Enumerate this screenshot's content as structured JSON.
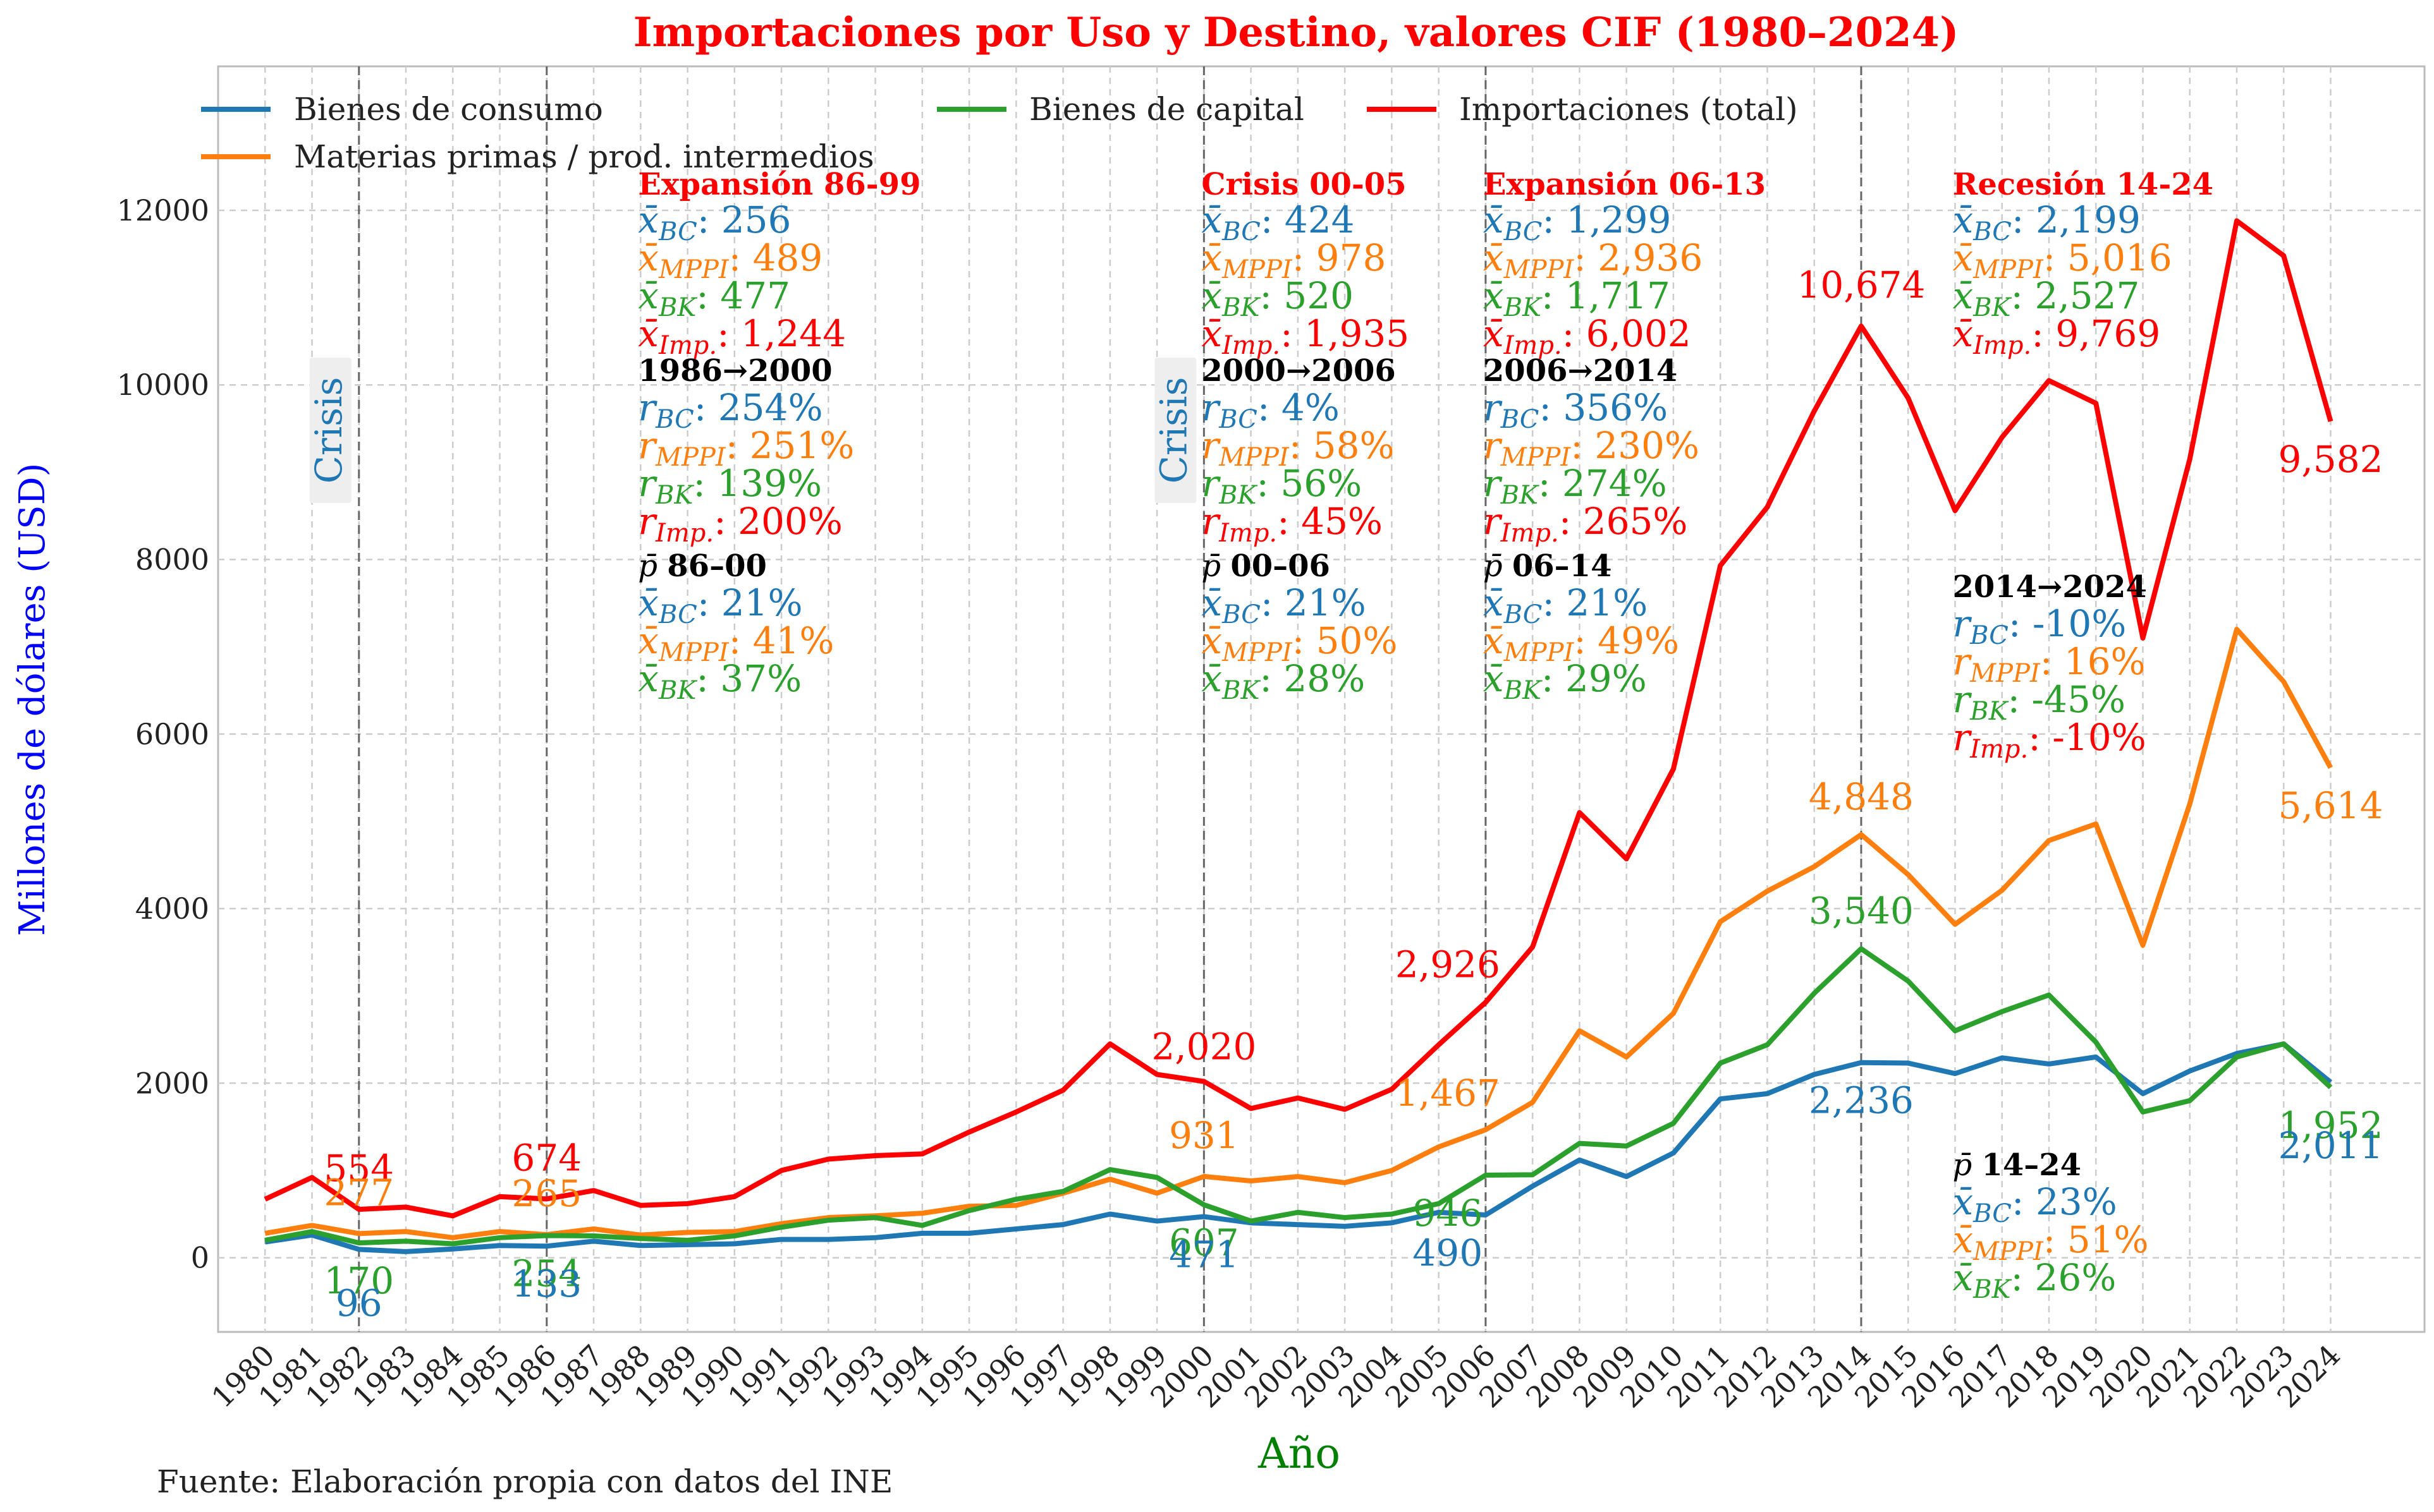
{
  "chart_data": {
    "type": "line",
    "title": "Importaciones por Uso y Destino, valores CIF (1980–2024)",
    "xlabel": "Año",
    "ylabel": "Millones de dólares (USD)",
    "source": "Fuente: Elaboración propia con datos del INE",
    "ylim": [
      -850,
      13650
    ],
    "xlim": [
      1979,
      2026
    ],
    "y_ticks": [
      "0",
      "2000",
      "4000",
      "6000",
      "8000",
      "10000",
      "12000"
    ],
    "y_tick_values": [
      0,
      2000,
      4000,
      6000,
      8000,
      10000,
      12000
    ],
    "grid": true,
    "legend_position": "top-left",
    "x": [
      1980,
      1981,
      1982,
      1983,
      1984,
      1985,
      1986,
      1987,
      1988,
      1989,
      1990,
      1991,
      1992,
      1993,
      1994,
      1995,
      1996,
      1997,
      1998,
      1999,
      2000,
      2001,
      2002,
      2003,
      2004,
      2005,
      2006,
      2007,
      2008,
      2009,
      2010,
      2011,
      2012,
      2013,
      2014,
      2015,
      2016,
      2017,
      2018,
      2019,
      2020,
      2021,
      2022,
      2023,
      2024
    ],
    "x_labels": [
      "1980",
      "1981",
      "1982",
      "1983",
      "1984",
      "1985",
      "1986",
      "1987",
      "1988",
      "1989",
      "1990",
      "1991",
      "1992",
      "1993",
      "1994",
      "1995",
      "1996",
      "1997",
      "1998",
      "1999",
      "2000",
      "2001",
      "2002",
      "2003",
      "2004",
      "2005",
      "2006",
      "2007",
      "2008",
      "2009",
      "2010",
      "2011",
      "2012",
      "2013",
      "2014",
      "2015",
      "2016",
      "2017",
      "2018",
      "2019",
      "2020",
      "2021",
      "2022",
      "2023",
      "2024"
    ],
    "series": [
      {
        "name": "Bienes de consumo",
        "color": "#1f77b4",
        "values": [
          180,
          260,
          96,
          70,
          100,
          140,
          133,
          190,
          140,
          150,
          160,
          210,
          210,
          230,
          280,
          280,
          330,
          380,
          500,
          420,
          471,
          400,
          380,
          360,
          400,
          520,
          490,
          820,
          1120,
          930,
          1200,
          1820,
          1880,
          2100,
          2236,
          2230,
          2110,
          2290,
          2220,
          2300,
          1880,
          2140,
          2340,
          2450,
          2011
        ]
      },
      {
        "name": "Materias primas / prod. intermedios",
        "color": "#ff7f0e",
        "values": [
          280,
          370,
          277,
          300,
          230,
          300,
          265,
          330,
          260,
          290,
          300,
          390,
          460,
          480,
          510,
          590,
          600,
          740,
          900,
          740,
          931,
          880,
          930,
          860,
          1000,
          1270,
          1467,
          1780,
          2600,
          2300,
          2800,
          3850,
          4200,
          4480,
          4848,
          4390,
          3820,
          4210,
          4780,
          4970,
          3580,
          5200,
          7200,
          6600,
          5614
        ]
      },
      {
        "name": "Bienes de capital",
        "color": "#2ca02c",
        "values": [
          200,
          300,
          170,
          190,
          160,
          230,
          254,
          250,
          220,
          200,
          250,
          350,
          430,
          460,
          370,
          540,
          670,
          760,
          1010,
          920,
          607,
          420,
          520,
          460,
          500,
          620,
          946,
          950,
          1310,
          1280,
          1540,
          2230,
          2440,
          3030,
          3540,
          3170,
          2600,
          2820,
          3010,
          2470,
          1670,
          1800,
          2300,
          2450,
          1952
        ]
      },
      {
        "name": "Importaciones (total)",
        "color": "#ff0000",
        "values": [
          670,
          920,
          554,
          580,
          480,
          700,
          674,
          770,
          600,
          620,
          700,
          1000,
          1130,
          1170,
          1190,
          1440,
          1670,
          1920,
          2450,
          2100,
          2020,
          1710,
          1830,
          1700,
          1930,
          2440,
          2926,
          3560,
          5100,
          4570,
          5600,
          7930,
          8600,
          9700,
          10674,
          9850,
          8560,
          9400,
          10050,
          9790,
          7100,
          9150,
          11880,
          11480,
          9582
        ]
      }
    ],
    "point_labels": [
      {
        "series": 3,
        "x": 1982,
        "text": "554"
      },
      {
        "series": 1,
        "x": 1982,
        "text": "277"
      },
      {
        "series": 2,
        "x": 1982,
        "text": "170"
      },
      {
        "series": 0,
        "x": 1982,
        "text": "96"
      },
      {
        "series": 3,
        "x": 1986,
        "text": "674"
      },
      {
        "series": 1,
        "x": 1986,
        "text": "265"
      },
      {
        "series": 2,
        "x": 1986,
        "text": "254"
      },
      {
        "series": 0,
        "x": 1986,
        "text": "133"
      },
      {
        "series": 3,
        "x": 2000,
        "text": "2,020"
      },
      {
        "series": 1,
        "x": 2000,
        "text": "931"
      },
      {
        "series": 2,
        "x": 2000,
        "text": "607"
      },
      {
        "series": 0,
        "x": 2000,
        "text": "471"
      },
      {
        "series": 3,
        "x": 2006,
        "text": "2,926"
      },
      {
        "series": 1,
        "x": 2006,
        "text": "1,467"
      },
      {
        "series": 2,
        "x": 2006,
        "text": "946"
      },
      {
        "series": 0,
        "x": 2006,
        "text": "490"
      },
      {
        "series": 3,
        "x": 2014,
        "text": "10,674"
      },
      {
        "series": 1,
        "x": 2014,
        "text": "4,848"
      },
      {
        "series": 2,
        "x": 2014,
        "text": "3,540"
      },
      {
        "series": 0,
        "x": 2014,
        "text": "2,236"
      },
      {
        "series": 3,
        "x": 2024,
        "text": "9,582"
      },
      {
        "series": 1,
        "x": 2024,
        "text": "5,614"
      },
      {
        "series": 2,
        "x": 2024,
        "text": "1,952"
      },
      {
        "series": 0,
        "x": 2024,
        "text": "2,011"
      }
    ],
    "vlines": [
      1982,
      1986,
      2000,
      2006,
      2014
    ],
    "crisis_labels": [
      {
        "x": 1982,
        "text": "Crisis"
      },
      {
        "x": 2000,
        "text": "Crisis"
      }
    ],
    "period_blocks": [
      {
        "title": "Expansión 86-99",
        "means": {
          "bc": "256",
          "mppi": "489",
          "bk": "477",
          "imp": "1,244"
        },
        "growth_title": "1986→2000",
        "growth": {
          "bc": "254%",
          "mppi": "251%",
          "bk": "139%",
          "imp": "200%"
        },
        "share_title": "86–00",
        "share": {
          "bc": "21%",
          "mppi": "41%",
          "bk": "37%"
        }
      },
      {
        "title": "Crisis 00-05",
        "means": {
          "bc": "424",
          "mppi": "978",
          "bk": "520",
          "imp": "1,935"
        },
        "growth_title": "2000→2006",
        "growth": {
          "bc": "4%",
          "mppi": "58%",
          "bk": "56%",
          "imp": "45%"
        },
        "share_title": "00–06",
        "share": {
          "bc": "21%",
          "mppi": "50%",
          "bk": "28%"
        }
      },
      {
        "title": "Expansión 06-13",
        "means": {
          "bc": "1,299",
          "mppi": "2,936",
          "bk": "1,717",
          "imp": "6,002"
        },
        "growth_title": "2006→2014",
        "growth": {
          "bc": "356%",
          "mppi": "230%",
          "bk": "274%",
          "imp": "265%"
        },
        "share_title": "06–14",
        "share": {
          "bc": "21%",
          "mppi": "49%",
          "bk": "29%"
        }
      },
      {
        "title": "Recesión 14-24",
        "means": {
          "bc": "2,199",
          "mppi": "5,016",
          "bk": "2,527",
          "imp": "9,769"
        },
        "growth_title": "2014→2024",
        "growth": {
          "bc": "-10%",
          "mppi": "16%",
          "bk": "-45%",
          "imp": "-10%"
        },
        "share_title": "14–24",
        "share": {
          "bc": "23%",
          "mppi": "51%",
          "bk": "26%"
        }
      }
    ],
    "legend": [
      {
        "name": "Bienes de consumo",
        "color": "#1f77b4"
      },
      {
        "name": "Bienes de capital",
        "color": "#2ca02c"
      },
      {
        "name": "Importaciones (total)",
        "color": "#ff0000"
      },
      {
        "name": "Materias primas / prod. intermedios",
        "color": "#ff7f0e"
      }
    ],
    "colors": {
      "title": "#ff0000",
      "ylabel": "#0000ff",
      "xlabel": "#008000"
    }
  }
}
